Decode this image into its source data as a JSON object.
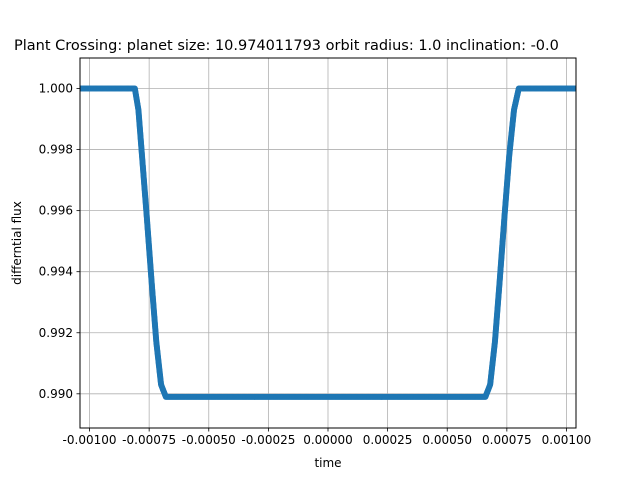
{
  "chart_data": {
    "type": "scatter",
    "title": "Plant Crossing: planet size: 10.974011793 orbit radius: 1.0 inclination: -0.0",
    "xlabel": "time",
    "ylabel": "differntial flux",
    "xlim": [
      -0.00104,
      0.00104
    ],
    "ylim": [
      0.98888,
      1.001
    ],
    "grid": true,
    "x_ticks": [
      -0.001,
      -0.00075,
      -0.0005,
      -0.00025,
      0.0,
      0.00025,
      0.0005,
      0.00075,
      0.001
    ],
    "x_tick_labels": [
      "-0.00100",
      "-0.00075",
      "-0.00050",
      "-0.00025",
      "0.00000",
      "0.00025",
      "0.00050",
      "0.00075",
      "0.00100"
    ],
    "y_ticks": [
      0.99,
      0.992,
      0.994,
      0.996,
      0.998,
      1.0
    ],
    "y_tick_labels": [
      "0.990",
      "0.992",
      "0.994",
      "0.996",
      "0.998",
      "1.000"
    ],
    "series": [
      {
        "color": "#1f77b4",
        "points": [
          [
            -0.00104,
            1.0
          ],
          [
            -0.00095,
            1.0
          ],
          [
            -0.00086,
            1.0
          ],
          [
            -0.00081,
            1.0
          ],
          [
            -0.000795,
            0.9993
          ],
          [
            -0.00078,
            0.9978
          ],
          [
            -0.00076,
            0.9958
          ],
          [
            -0.00074,
            0.9937
          ],
          [
            -0.00072,
            0.9917
          ],
          [
            -0.0007,
            0.9903
          ],
          [
            -0.00068,
            0.9899
          ],
          [
            -0.0005,
            0.9899
          ],
          [
            -0.00025,
            0.9899
          ],
          [
            0.0,
            0.9899
          ],
          [
            0.00025,
            0.9899
          ],
          [
            0.0005,
            0.9899
          ],
          [
            0.00066,
            0.9899
          ],
          [
            0.00068,
            0.9903
          ],
          [
            0.0007,
            0.9917
          ],
          [
            0.00072,
            0.9937
          ],
          [
            0.00074,
            0.9958
          ],
          [
            0.00076,
            0.9978
          ],
          [
            0.00078,
            0.9993
          ],
          [
            0.0008,
            1.0
          ],
          [
            0.00086,
            1.0
          ],
          [
            0.00095,
            1.0
          ],
          [
            0.00104,
            1.0
          ]
        ]
      }
    ]
  }
}
